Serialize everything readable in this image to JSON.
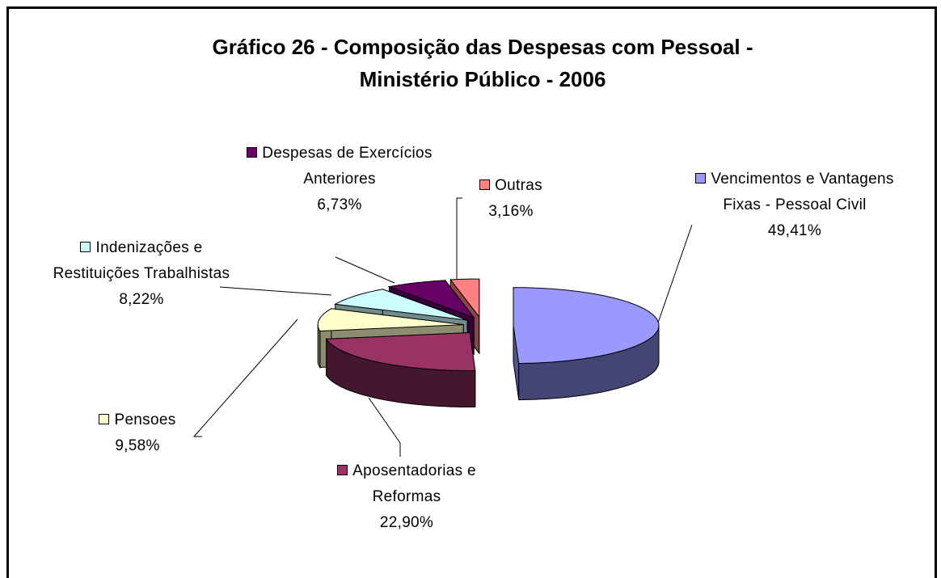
{
  "chart_data": {
    "type": "pie",
    "title": "Gráfico 26 - Composição das Despesas com Pessoal - Ministério Público - 2006",
    "categories": [
      "Vencimentos e Vantagens Fixas - Pessoal Civil",
      "Aposentadorias e Reformas",
      "Pensoes",
      "Indenizações e Restituições Trabalhistas",
      "Despesas de Exercícios Anteriores",
      "Outras"
    ],
    "values": [
      49.41,
      22.9,
      9.58,
      8.22,
      6.73,
      3.16
    ],
    "value_labels": [
      "49,41%",
      "22,90%",
      "9,58%",
      "8,22%",
      "6,73%",
      "3,16%"
    ],
    "colors": [
      "#9999ff",
      "#993366",
      "#ffffcc",
      "#ccffff",
      "#660066",
      "#ff8080"
    ]
  }
}
